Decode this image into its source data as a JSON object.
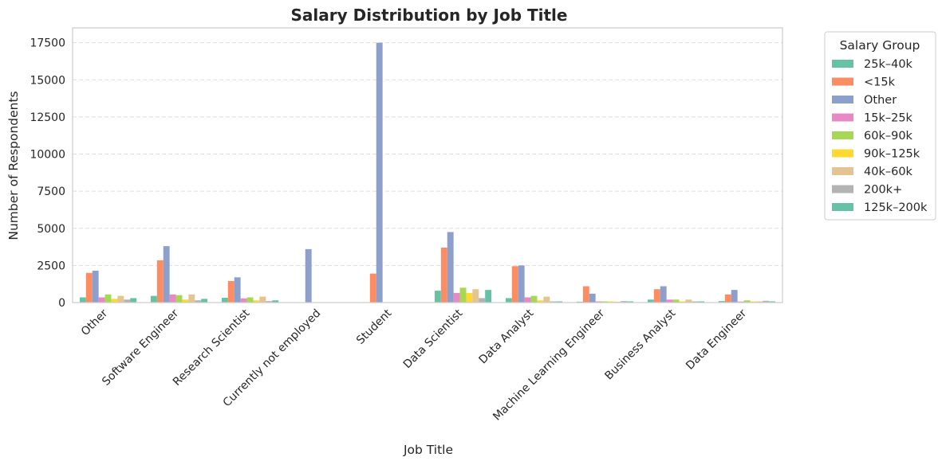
{
  "chart_data": {
    "type": "bar",
    "title": "Salary Distribution by Job Title",
    "xlabel": "Job Title",
    "ylabel": "Number of Respondents",
    "ylim": [
      0,
      18500
    ],
    "yticks": [
      0,
      2500,
      5000,
      7500,
      10000,
      12500,
      15000,
      17500
    ],
    "ytick_labels": [
      "0",
      "2500",
      "5000",
      "7500",
      "10000",
      "12500",
      "15000",
      "17500"
    ],
    "grid": "y-dashed",
    "legend_title": "Salary Group",
    "legend_position": "outside-top-right",
    "categories": [
      "Other",
      "Software Engineer",
      "Research Scientist",
      "Currently not employed",
      "Student",
      "Data Scientist",
      "Data Analyst",
      "Machine Learning Engineer",
      "Business Analyst",
      "Data Engineer"
    ],
    "series": [
      {
        "name": "25k–40k",
        "color": "#66c2a5",
        "values": [
          350,
          450,
          320,
          0,
          0,
          800,
          300,
          60,
          200,
          100
        ]
      },
      {
        "name": "<15k",
        "color": "#fc8d62",
        "values": [
          2000,
          2850,
          1450,
          0,
          1950,
          3700,
          2450,
          1100,
          900,
          550
        ]
      },
      {
        "name": "Other",
        "color": "#8da0cb",
        "values": [
          2150,
          3800,
          1700,
          3600,
          17500,
          4750,
          2500,
          600,
          1100,
          850
        ]
      },
      {
        "name": "15k–25k",
        "color": "#e78ac3",
        "values": [
          350,
          550,
          280,
          0,
          0,
          650,
          350,
          80,
          200,
          70
        ]
      },
      {
        "name": "60k–90k",
        "color": "#a6d854",
        "values": [
          550,
          500,
          350,
          0,
          0,
          1000,
          450,
          80,
          200,
          150
        ]
      },
      {
        "name": "90k–125k",
        "color": "#ffd92f",
        "values": [
          250,
          200,
          150,
          0,
          0,
          650,
          150,
          80,
          80,
          80
        ]
      },
      {
        "name": "40k–60k",
        "color": "#e5c494",
        "values": [
          450,
          550,
          400,
          0,
          0,
          900,
          400,
          60,
          200,
          80
        ]
      },
      {
        "name": "200k+",
        "color": "#b3b3b3",
        "values": [
          200,
          150,
          100,
          0,
          0,
          300,
          80,
          100,
          80,
          120
        ]
      },
      {
        "name": "125k–200k",
        "color": "#66c2a5",
        "values": [
          300,
          250,
          150,
          0,
          0,
          850,
          80,
          80,
          80,
          80
        ]
      }
    ]
  }
}
